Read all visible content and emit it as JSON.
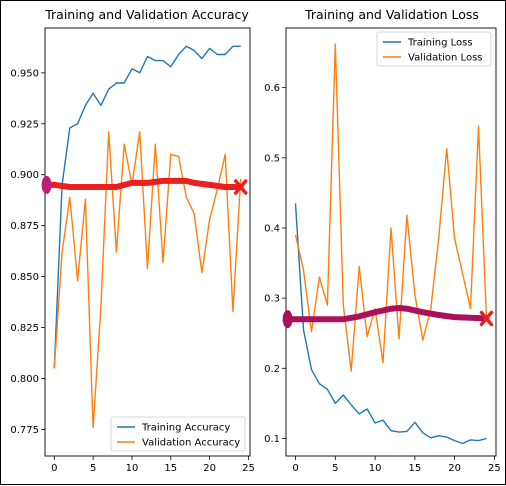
{
  "charts": [
    {
      "type": "line",
      "title": "Training and Validation Accuracy",
      "xlim": [
        -1.2,
        25.2
      ],
      "ylim": [
        0.762,
        0.972
      ],
      "xticks": [
        0,
        5,
        10,
        15,
        20,
        25
      ],
      "yticks": [
        0.775,
        0.8,
        0.825,
        0.85,
        0.875,
        0.9,
        0.925,
        0.95
      ],
      "ytick_labels": [
        "0.775",
        "0.800",
        "0.825",
        "0.850",
        "0.875",
        "0.900",
        "0.925",
        "0.950"
      ],
      "legend_position": "lower-right",
      "series": [
        {
          "name": "Training Accuracy",
          "color": "#1f77b4",
          "x": [
            0,
            1,
            2,
            3,
            4,
            5,
            6,
            7,
            8,
            9,
            10,
            11,
            12,
            13,
            14,
            15,
            16,
            17,
            18,
            19,
            20,
            21,
            22,
            23,
            24
          ],
          "values": [
            0.805,
            0.895,
            0.923,
            0.925,
            0.934,
            0.94,
            0.934,
            0.942,
            0.945,
            0.945,
            0.952,
            0.95,
            0.958,
            0.956,
            0.956,
            0.953,
            0.959,
            0.963,
            0.961,
            0.957,
            0.962,
            0.959,
            0.959,
            0.963,
            0.963
          ]
        },
        {
          "name": "Validation Accuracy",
          "color": "#ff7f0e",
          "x": [
            0,
            1,
            2,
            3,
            4,
            5,
            6,
            7,
            8,
            9,
            10,
            11,
            12,
            13,
            14,
            15,
            16,
            17,
            18,
            19,
            20,
            21,
            22,
            23,
            24
          ],
          "values": [
            0.805,
            0.862,
            0.889,
            0.848,
            0.888,
            0.776,
            0.835,
            0.921,
            0.862,
            0.915,
            0.895,
            0.921,
            0.854,
            0.915,
            0.857,
            0.91,
            0.909,
            0.889,
            0.881,
            0.852,
            0.878,
            0.893,
            0.91,
            0.833,
            0.898
          ]
        }
      ],
      "overlay": {
        "color": "#e8211f",
        "start_color": "#c01d7a",
        "end_color": "#e8211f",
        "x": [
          -1,
          0,
          2,
          4,
          6,
          8,
          9,
          10,
          12,
          14,
          16,
          17,
          18,
          20,
          22,
          24
        ],
        "values": [
          0.895,
          0.895,
          0.894,
          0.894,
          0.894,
          0.894,
          0.895,
          0.896,
          0.896,
          0.897,
          0.897,
          0.897,
          0.896,
          0.895,
          0.894,
          0.894
        ]
      }
    },
    {
      "type": "line",
      "title": "Training and Validation Loss",
      "xlim": [
        -1.2,
        25.2
      ],
      "ylim": [
        0.075,
        0.685
      ],
      "xticks": [
        0,
        5,
        10,
        15,
        20,
        25
      ],
      "yticks": [
        0.1,
        0.2,
        0.3,
        0.4,
        0.5,
        0.6
      ],
      "ytick_labels": [
        "0.1",
        "0.2",
        "0.3",
        "0.4",
        "0.5",
        "0.6"
      ],
      "legend_position": "upper-right",
      "series": [
        {
          "name": "Training Loss",
          "color": "#1f77b4",
          "x": [
            0,
            1,
            2,
            3,
            4,
            5,
            6,
            7,
            8,
            9,
            10,
            11,
            12,
            13,
            14,
            15,
            16,
            17,
            18,
            19,
            20,
            21,
            22,
            23,
            24
          ],
          "values": [
            0.435,
            0.255,
            0.198,
            0.178,
            0.17,
            0.15,
            0.162,
            0.148,
            0.135,
            0.142,
            0.122,
            0.126,
            0.111,
            0.109,
            0.11,
            0.123,
            0.108,
            0.101,
            0.104,
            0.102,
            0.097,
            0.093,
            0.098,
            0.097,
            0.1
          ]
        },
        {
          "name": "Validation Loss",
          "color": "#ff7f0e",
          "x": [
            0,
            1,
            2,
            3,
            4,
            5,
            6,
            7,
            8,
            9,
            10,
            11,
            12,
            13,
            14,
            15,
            16,
            17,
            18,
            19,
            20,
            21,
            22,
            23,
            24
          ],
          "values": [
            0.39,
            0.34,
            0.252,
            0.33,
            0.29,
            0.662,
            0.29,
            0.196,
            0.345,
            0.245,
            0.285,
            0.208,
            0.4,
            0.242,
            0.418,
            0.305,
            0.24,
            0.285,
            0.385,
            0.513,
            0.385,
            0.335,
            0.285,
            0.545,
            0.27
          ]
        }
      ],
      "overlay": {
        "color": "#a8125a",
        "start_color": "#a8125a",
        "end_color": "#e8211f",
        "x": [
          -1,
          0,
          2,
          4,
          6,
          8,
          10,
          12,
          13,
          14,
          16,
          18,
          20,
          22,
          24
        ],
        "values": [
          0.27,
          0.27,
          0.27,
          0.27,
          0.27,
          0.274,
          0.28,
          0.285,
          0.286,
          0.285,
          0.28,
          0.276,
          0.273,
          0.272,
          0.271
        ]
      }
    }
  ]
}
